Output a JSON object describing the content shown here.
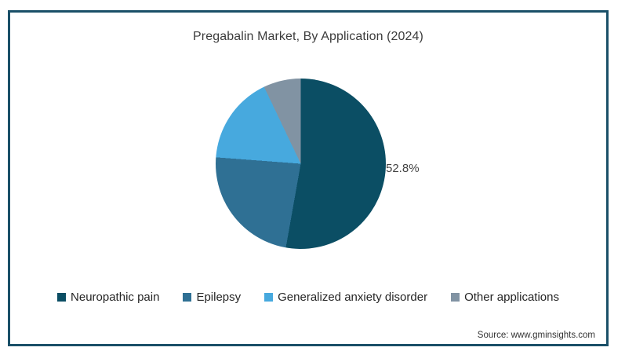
{
  "chart": {
    "title": "Pregabalin Market, By Application (2024)",
    "data_label": "52.8%",
    "source": "Source: www.gminsights.com"
  },
  "chart_data": {
    "type": "pie",
    "title": "Pregabalin Market, By Application (2024)",
    "categories": [
      "Neuropathic pain",
      "Epilepsy",
      "Generalized anxiety disorder",
      "Other applications"
    ],
    "values": [
      52.8,
      23.4,
      16.7,
      7.1
    ],
    "unit": "%",
    "visible_data_labels": [
      "52.8%",
      null,
      null,
      null
    ],
    "colors": [
      "#0b4e64",
      "#2f7094",
      "#47a9de",
      "#8193a3"
    ],
    "start_angle_deg": 0,
    "direction": "clockwise",
    "legend_position": "bottom",
    "annotations": [
      {
        "text": "52.8%",
        "target": "Neuropathic pain",
        "position": "right of pie"
      }
    ]
  },
  "colors": {
    "frame_border": "#1a5068",
    "background": "#ffffff",
    "title_text": "#3c3c3c",
    "legend_text": "#262626",
    "label_text": "#444444",
    "source_text": "#333333"
  }
}
